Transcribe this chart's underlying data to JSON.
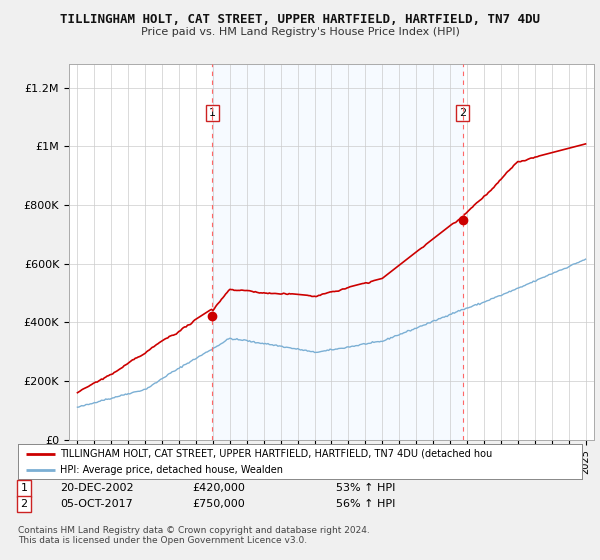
{
  "title": "TILLINGHAM HOLT, CAT STREET, UPPER HARTFIELD, HARTFIELD, TN7 4DU",
  "subtitle": "Price paid vs. HM Land Registry's House Price Index (HPI)",
  "ylabel_ticks": [
    "£0",
    "£200K",
    "£400K",
    "£600K",
    "£800K",
    "£1M",
    "£1.2M"
  ],
  "ytick_vals": [
    0,
    200000,
    400000,
    600000,
    800000,
    1000000,
    1200000
  ],
  "ylim": [
    0,
    1280000
  ],
  "xlim_start": 1994.5,
  "xlim_end": 2025.5,
  "xtick_years": [
    1995,
    1996,
    1997,
    1998,
    1999,
    2000,
    2001,
    2002,
    2003,
    2004,
    2005,
    2006,
    2007,
    2008,
    2009,
    2010,
    2011,
    2012,
    2013,
    2014,
    2015,
    2016,
    2017,
    2018,
    2019,
    2020,
    2021,
    2022,
    2023,
    2024,
    2025
  ],
  "red_line_color": "#cc0000",
  "blue_line_color": "#7bafd4",
  "shade_color": "#ddeeff",
  "sale1_x": 2002.97,
  "sale1_y": 420000,
  "sale2_x": 2017.75,
  "sale2_y": 750000,
  "vline_color": "#ff6666",
  "legend_red_label": "TILLINGHAM HOLT, CAT STREET, UPPER HARTFIELD, HARTFIELD, TN7 4DU (detached hou",
  "legend_blue_label": "HPI: Average price, detached house, Wealden",
  "annotation1_num": "1",
  "annotation2_num": "2",
  "sale1_date": "20-DEC-2002",
  "sale1_price": "£420,000",
  "sale1_hpi": "53% ↑ HPI",
  "sale2_date": "05-OCT-2017",
  "sale2_price": "£750,000",
  "sale2_hpi": "56% ↑ HPI",
  "footer1": "Contains HM Land Registry data © Crown copyright and database right 2024.",
  "footer2": "This data is licensed under the Open Government Licence v3.0.",
  "bg_color": "#f0f0f0",
  "plot_bg_color": "#ffffff"
}
